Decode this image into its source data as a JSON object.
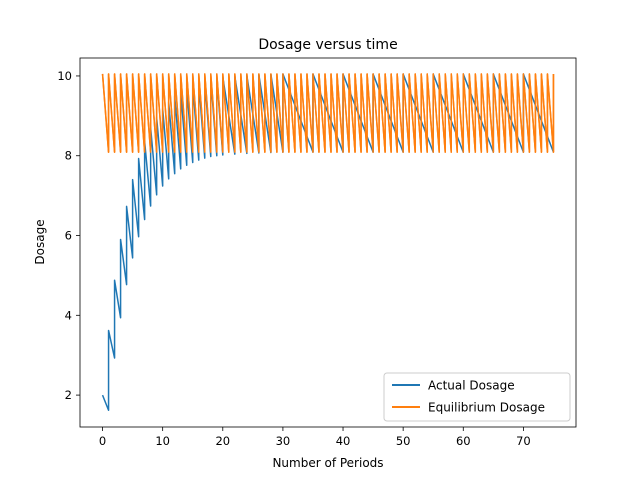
{
  "chart_data": {
    "type": "line",
    "title": "Dosage versus time",
    "xlabel": "Number of Periods",
    "ylabel": "Dosage",
    "xlim": [
      -3.75,
      78.75
    ],
    "ylim": [
      1.2,
      10.45
    ],
    "xticks": [
      0,
      10,
      20,
      30,
      40,
      50,
      60,
      70
    ],
    "yticks": [
      2,
      4,
      6,
      8
    ],
    "ytick_labels_extra": [
      10
    ],
    "grid": false,
    "legend_position": "lower-right",
    "periods": 75,
    "series": [
      {
        "name": "Actual Dosage",
        "color": "#1f77b4",
        "x": [
          0,
          1,
          1,
          2,
          2,
          3,
          3,
          4,
          4,
          5,
          5,
          6,
          6,
          7,
          7,
          8,
          8,
          9,
          9,
          10,
          10,
          11,
          11,
          12,
          12,
          13,
          13,
          14,
          14,
          15,
          15,
          16,
          16,
          17,
          17,
          18,
          18,
          19,
          19,
          20,
          20,
          22,
          22,
          24,
          24,
          26,
          26,
          28,
          28,
          30,
          30,
          35,
          35,
          40,
          40,
          45,
          45,
          50,
          50,
          55,
          55,
          60,
          60,
          65,
          65,
          70,
          70,
          75
        ],
        "y": [
          2.0,
          1.62,
          3.62,
          2.93,
          4.88,
          3.94,
          5.9,
          4.77,
          6.73,
          5.44,
          7.4,
          5.97,
          7.93,
          6.4,
          8.36,
          6.74,
          8.7,
          7.02,
          8.96,
          7.24,
          9.18,
          7.42,
          9.35,
          7.55,
          9.5,
          7.67,
          9.6,
          7.76,
          9.7,
          7.83,
          9.77,
          7.89,
          9.83,
          7.94,
          9.87,
          7.98,
          9.92,
          8.0,
          9.95,
          8.02,
          9.97,
          8.04,
          9.99,
          8.06,
          10.01,
          8.07,
          10.03,
          8.08,
          10.04,
          8.09,
          10.05,
          8.09,
          10.05,
          8.09,
          10.05,
          8.09,
          10.05,
          8.09,
          10.05,
          8.09,
          10.05,
          8.09,
          10.05,
          8.09,
          10.05,
          8.09,
          10.05,
          8.09
        ]
      },
      {
        "name": "Equilibrium Dosage",
        "color": "#ff7f0e",
        "peak": 10.05,
        "trough": 8.09
      }
    ]
  }
}
